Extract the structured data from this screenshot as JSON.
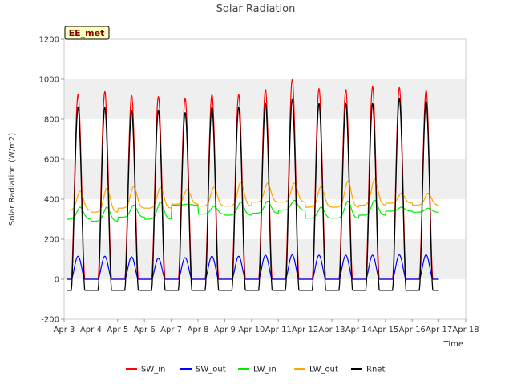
{
  "chart_data": {
    "type": "line",
    "title": "Solar Radiation",
    "xlabel": "Time",
    "ylabel": "Solar Radiation (W/m2)",
    "badge": "EE_met",
    "ylim": [
      -200,
      1200
    ],
    "yticks": [
      -200,
      0,
      200,
      400,
      600,
      800,
      1000,
      1200
    ],
    "xlim": [
      3,
      18
    ],
    "xticks": [
      3,
      4,
      5,
      6,
      7,
      8,
      9,
      10,
      11,
      12,
      13,
      14,
      15,
      16,
      17,
      18
    ],
    "xtick_labels": [
      "Apr 3",
      "Apr 4",
      "Apr 5",
      "Apr 6",
      "Apr 7",
      "Apr 8",
      "Apr 9",
      "Apr 10",
      "Apr 11",
      "Apr 12",
      "Apr 13",
      "Apr 14",
      "Apr 15",
      "Apr 16",
      "Apr 17",
      "Apr 18"
    ],
    "grid": "horizontal bands",
    "legend_position": "bottom",
    "days": [
      3.5,
      4.5,
      5.5,
      6.5,
      7.5,
      8.5,
      9.5,
      10.5,
      11.5,
      12.5,
      13.5,
      14.5,
      15.5,
      16.5
    ],
    "series": [
      {
        "name": "SW_in",
        "color": "#ff0000",
        "daily_peak": [
          925,
          940,
          920,
          915,
          905,
          925,
          925,
          950,
          1000,
          955,
          950,
          965,
          960,
          945
        ],
        "night_value": 0
      },
      {
        "name": "SW_out",
        "color": "#0000ff",
        "daily_peak": [
          115,
          115,
          112,
          105,
          108,
          115,
          115,
          120,
          122,
          120,
          120,
          120,
          122,
          122
        ],
        "night_value": 0
      },
      {
        "name": "LW_in",
        "color": "#00ee00",
        "daily_night": [
          300,
          290,
          310,
          300,
          370,
          325,
          320,
          330,
          345,
          305,
          305,
          320,
          340,
          335
        ],
        "daily_peak": [
          360,
          360,
          370,
          385,
          375,
          365,
          385,
          390,
          395,
          360,
          390,
          395,
          360,
          355
        ]
      },
      {
        "name": "LW_out",
        "color": "#ffa500",
        "daily_night": [
          345,
          335,
          355,
          355,
          375,
          365,
          365,
          385,
          385,
          360,
          360,
          370,
          380,
          370
        ],
        "daily_peak": [
          440,
          455,
          465,
          460,
          450,
          460,
          485,
          480,
          480,
          465,
          490,
          500,
          430,
          430
        ]
      },
      {
        "name": "Rnet",
        "color": "#000000",
        "daily_peak": [
          860,
          860,
          845,
          845,
          835,
          860,
          860,
          880,
          900,
          880,
          880,
          880,
          905,
          890
        ],
        "night_value": -55
      }
    ]
  }
}
